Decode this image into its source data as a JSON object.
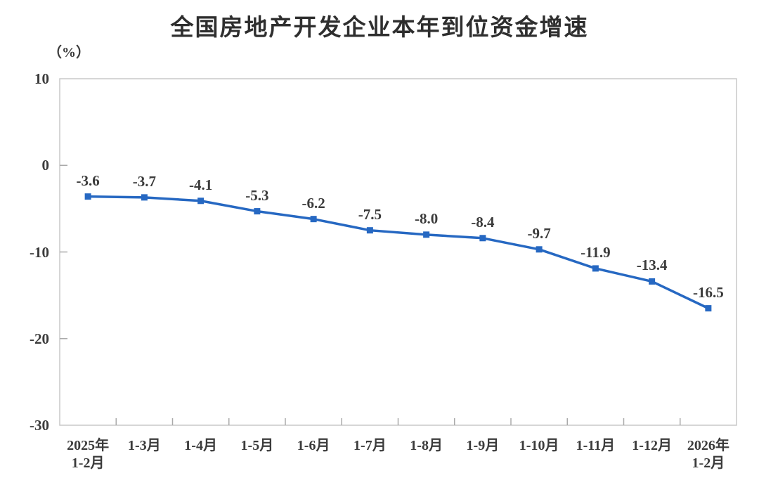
{
  "chart_data": {
    "type": "line",
    "title": "全国房地产开发企业本年到位资金增速",
    "unit_label": "（%）",
    "categories": [
      "2025年\n1-2月",
      "1-3月",
      "1-4月",
      "1-5月",
      "1-6月",
      "1-7月",
      "1-8月",
      "1-9月",
      "1-10月",
      "1-11月",
      "1-12月",
      "2026年\n1-2月"
    ],
    "values": [
      -3.6,
      -3.7,
      -4.1,
      -5.3,
      -6.2,
      -7.5,
      -8.0,
      -8.4,
      -9.7,
      -11.9,
      -13.4,
      -16.5
    ],
    "data_labels": [
      "-3.6",
      "-3.7",
      "-4.1",
      "-5.3",
      "-6.2",
      "-7.5",
      "-8.0",
      "-8.4",
      "-9.7",
      "-11.9",
      "-13.4",
      "-16.5"
    ],
    "y_ticks": [
      10,
      0,
      -10,
      -20,
      -30
    ],
    "ylim": [
      -30,
      10
    ],
    "grid": false,
    "legend": false,
    "line_color": "#2668c2",
    "marker": "square",
    "axis_color": "#c9c9c9",
    "tick_color": "#aaaaaa",
    "text_color": "#3b3b3b"
  }
}
